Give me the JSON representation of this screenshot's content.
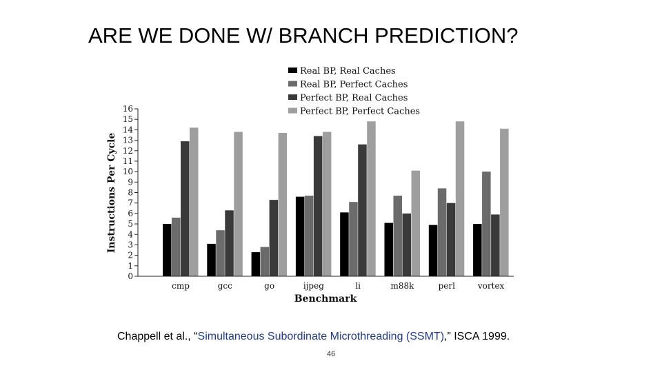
{
  "slide": {
    "title": "ARE WE DONE W/ BRANCH PREDICTION?",
    "citation_prefix": "Chappell et al., “",
    "citation_link": "Simultaneous Subordinate Microthreading (SSMT)",
    "citation_suffix": ",” ISCA 1999.",
    "page_number": "46"
  },
  "chart_data": {
    "type": "bar",
    "title": "",
    "xlabel": "Benchmark",
    "ylabel": "Instructions Per Cycle",
    "ylim": [
      0,
      16
    ],
    "yticks": [
      0,
      1,
      2,
      3,
      4,
      5,
      6,
      7,
      8,
      9,
      10,
      11,
      12,
      13,
      14,
      15,
      16
    ],
    "grid": false,
    "legend_position": "top",
    "categories": [
      "cmp",
      "gcc",
      "go",
      "ijpeg",
      "li",
      "m88k",
      "perl",
      "vortex"
    ],
    "series": [
      {
        "name": "Real BP, Real Caches",
        "color": "#000000",
        "values": [
          5.0,
          3.1,
          2.3,
          7.6,
          6.1,
          5.1,
          4.9,
          5.0
        ]
      },
      {
        "name": "Real BP, Perfect Caches",
        "color": "#6b6b6b",
        "values": [
          5.6,
          4.4,
          2.8,
          7.7,
          7.1,
          7.7,
          8.4,
          10.0
        ]
      },
      {
        "name": "Perfect BP, Real Caches",
        "color": "#3a3a3a",
        "values": [
          12.9,
          6.3,
          7.3,
          13.4,
          12.6,
          6.0,
          7.0,
          5.9
        ]
      },
      {
        "name": "Perfect BP, Perfect Caches",
        "color": "#9e9e9e",
        "values": [
          14.2,
          13.8,
          13.7,
          13.8,
          14.8,
          10.1,
          14.8,
          14.1
        ]
      }
    ]
  }
}
